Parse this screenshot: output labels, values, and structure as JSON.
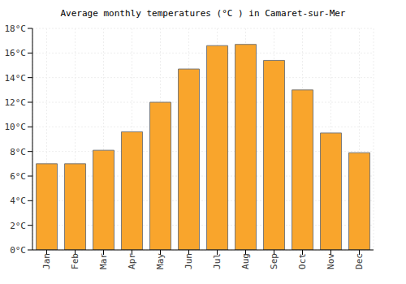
{
  "chart_data": {
    "type": "bar",
    "title": "Average monthly temperatures (°C ) in Camaret-sur-Mer",
    "categories": [
      "Jan",
      "Feb",
      "Mar",
      "Apr",
      "May",
      "Jun",
      "Jul",
      "Aug",
      "Sep",
      "Oct",
      "Nov",
      "Dec"
    ],
    "values": [
      7.0,
      7.0,
      8.1,
      9.6,
      12.0,
      14.7,
      16.6,
      16.7,
      15.4,
      13.0,
      9.5,
      7.9
    ],
    "color": "#f9a52c",
    "ylim": [
      0,
      18
    ],
    "yticks": [
      {
        "value": 0,
        "label": "0°C"
      },
      {
        "value": 2,
        "label": "2°C"
      },
      {
        "value": 4,
        "label": "4°C"
      },
      {
        "value": 6,
        "label": "6°C"
      },
      {
        "value": 8,
        "label": "8°C"
      },
      {
        "value": 10,
        "label": "10°C"
      },
      {
        "value": 12,
        "label": "12°C"
      },
      {
        "value": 14,
        "label": "14°C"
      },
      {
        "value": 16,
        "label": "16°C"
      },
      {
        "value": 18,
        "label": "18°C"
      }
    ],
    "grid": true
  }
}
